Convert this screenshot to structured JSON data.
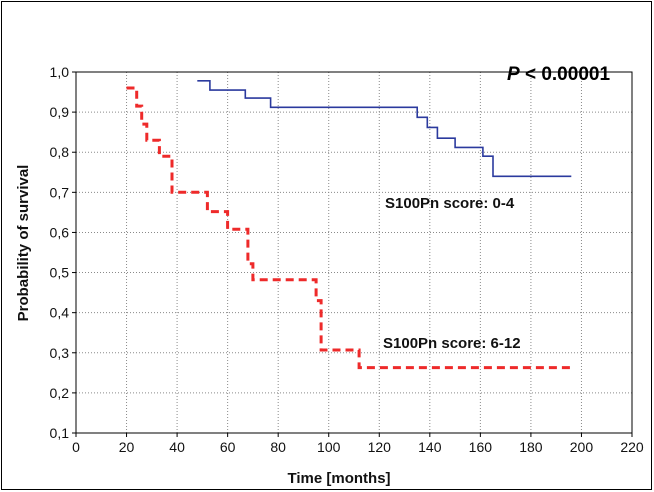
{
  "chart_data": {
    "type": "line",
    "title": "",
    "xlabel": "Time [months]",
    "ylabel": "Probability of survival",
    "xlim": [
      0,
      220
    ],
    "ylim": [
      0.1,
      1.0
    ],
    "x_ticks": [
      "0",
      "20",
      "40",
      "60",
      "80",
      "100",
      "120",
      "140",
      "160",
      "180",
      "200",
      "220"
    ],
    "y_ticks": [
      "0,1",
      "0,2",
      "0,3",
      "0,4",
      "0,5",
      "0,6",
      "0,7",
      "0,8",
      "0,9",
      "1,0"
    ],
    "grid": true,
    "annotation": {
      "p_label": "P",
      "p_text": " < 0.00001"
    },
    "series": [
      {
        "name": "S100Pn score: 0-4",
        "color": "#2b3a9e",
        "style": "solid",
        "points": [
          [
            48,
            0.978
          ],
          [
            53,
            0.978
          ],
          [
            53,
            0.955
          ],
          [
            67,
            0.955
          ],
          [
            67,
            0.935
          ],
          [
            77,
            0.935
          ],
          [
            77,
            0.912
          ],
          [
            135,
            0.912
          ],
          [
            135,
            0.887
          ],
          [
            139,
            0.887
          ],
          [
            139,
            0.862
          ],
          [
            143,
            0.862
          ],
          [
            143,
            0.835
          ],
          [
            150,
            0.835
          ],
          [
            150,
            0.812
          ],
          [
            161,
            0.812
          ],
          [
            161,
            0.79
          ],
          [
            165,
            0.79
          ],
          [
            165,
            0.74
          ],
          [
            196,
            0.74
          ]
        ]
      },
      {
        "name": "S100Pn score: 6-12",
        "color": "#ee2a2a",
        "style": "dashed",
        "points": [
          [
            20,
            0.96
          ],
          [
            24,
            0.96
          ],
          [
            24,
            0.915
          ],
          [
            26,
            0.915
          ],
          [
            26,
            0.87
          ],
          [
            28,
            0.87
          ],
          [
            28,
            0.83
          ],
          [
            33,
            0.83
          ],
          [
            33,
            0.79
          ],
          [
            38,
            0.79
          ],
          [
            38,
            0.7
          ],
          [
            52,
            0.7
          ],
          [
            52,
            0.652
          ],
          [
            60,
            0.652
          ],
          [
            60,
            0.608
          ],
          [
            68,
            0.608
          ],
          [
            68,
            0.522
          ],
          [
            70,
            0.522
          ],
          [
            70,
            0.482
          ],
          [
            95,
            0.482
          ],
          [
            95,
            0.43
          ],
          [
            97,
            0.43
          ],
          [
            97,
            0.307
          ],
          [
            112,
            0.307
          ],
          [
            112,
            0.263
          ],
          [
            196,
            0.263
          ]
        ]
      }
    ]
  }
}
